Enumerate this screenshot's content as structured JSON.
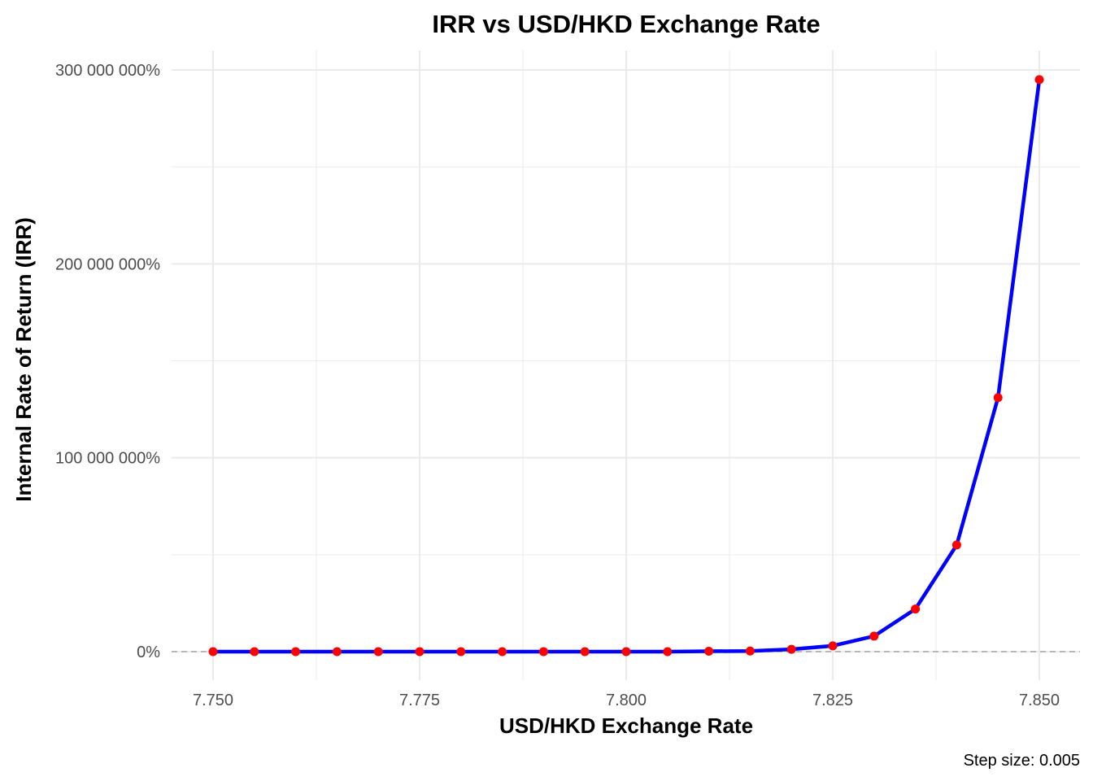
{
  "chart_data": {
    "type": "line",
    "title": "IRR vs USD/HKD Exchange Rate",
    "xlabel": "USD/HKD Exchange Rate",
    "ylabel": "Internal Rate of Return (IRR)",
    "caption": "Step size: 0.005",
    "xlim": [
      7.75,
      7.85
    ],
    "ylim": [
      0,
      300000000
    ],
    "x_ticks": [
      7.75,
      7.775,
      7.8,
      7.825,
      7.85
    ],
    "x_tick_labels": [
      "7.750",
      "7.775",
      "7.800",
      "7.825",
      "7.850"
    ],
    "y_ticks": [
      0,
      100000000,
      200000000,
      300000000
    ],
    "y_tick_labels": [
      "0%",
      "100 000 000%",
      "200 000 000%",
      "300 000 000%"
    ],
    "grid": true,
    "reference_line": {
      "y": 0,
      "style": "dashed"
    },
    "series": [
      {
        "x": [
          7.75,
          7.755,
          7.76,
          7.765,
          7.77,
          7.775,
          7.78,
          7.785,
          7.79,
          7.795,
          7.8,
          7.805,
          7.81,
          7.815,
          7.82,
          7.825,
          7.83,
          7.835,
          7.84,
          7.845,
          7.85
        ],
        "values": [
          0,
          0,
          0,
          0,
          0,
          0,
          0,
          0,
          0,
          0,
          0,
          0,
          200000,
          300000,
          1200000,
          3000000,
          8000000,
          22000000,
          55000000,
          131000000,
          295000000
        ]
      }
    ],
    "colors": {
      "line": "#0000ff",
      "points": "#ff0000",
      "grid": "#ebebeb",
      "reference_line": "#a6a6a6"
    }
  }
}
